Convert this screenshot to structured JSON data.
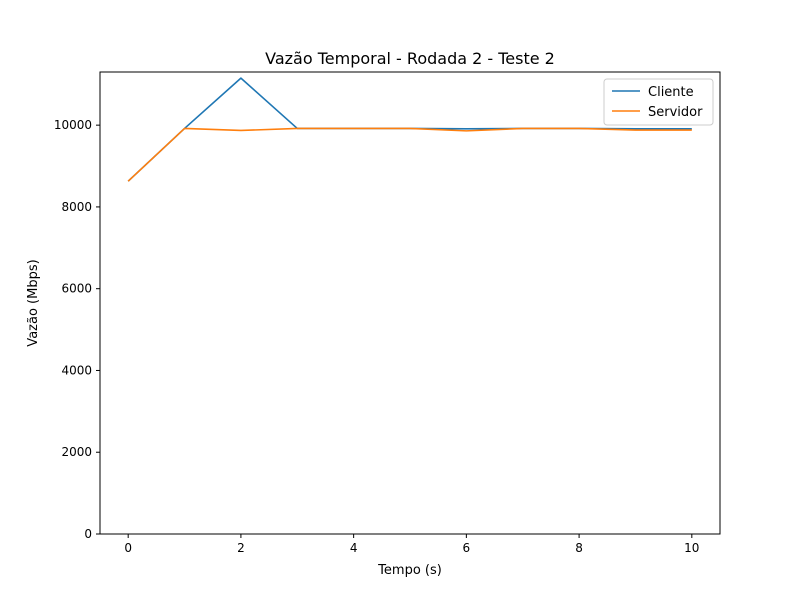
{
  "chart_data": {
    "type": "line",
    "title": "Vazão Temporal - Rodada 2 - Teste 2",
    "xlabel": "Tempo (s)",
    "ylabel": "Vazão (Mbps)",
    "xlim": [
      -0.5,
      10.5
    ],
    "ylim": [
      0,
      11300
    ],
    "xticks": [
      0,
      2,
      4,
      6,
      8,
      10
    ],
    "yticks": [
      0,
      2000,
      4000,
      6000,
      8000,
      10000
    ],
    "grid": false,
    "legend": "top-right",
    "x": [
      0,
      1,
      2,
      3,
      4,
      5,
      6,
      7,
      8,
      9,
      10
    ],
    "series": [
      {
        "name": "Cliente",
        "color": "#1f77b4",
        "values": [
          8630,
          9920,
          11150,
          9920,
          9920,
          9920,
          9910,
          9920,
          9920,
          9910,
          9910
        ]
      },
      {
        "name": "Servidor",
        "color": "#ff7f0e",
        "values": [
          8630,
          9920,
          9870,
          9920,
          9920,
          9920,
          9860,
          9920,
          9920,
          9880,
          9880
        ]
      }
    ]
  }
}
